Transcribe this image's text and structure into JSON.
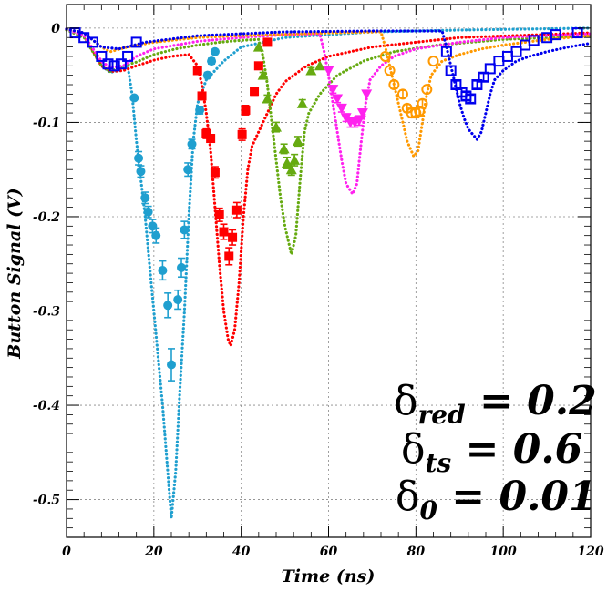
{
  "chart_data": {
    "type": "scatter",
    "xlabel": "Time (ns)",
    "ylabel": "Button Signal (V)",
    "xlim": [
      0,
      120
    ],
    "ylim": [
      -0.54,
      0.025
    ],
    "xticks": [
      0,
      20,
      40,
      60,
      80,
      100,
      120
    ],
    "xtick_labels": [
      "0",
      "20",
      "40",
      "60",
      "80",
      "100",
      "120"
    ],
    "yticks": [
      0,
      -0.1,
      -0.2,
      -0.3,
      -0.4,
      -0.5
    ],
    "ytick_labels": [
      "0",
      "-0.1",
      "-0.2",
      "-0.3",
      "-0.4",
      "-0.5"
    ],
    "grid": true,
    "annotations": [
      {
        "base": "δ",
        "sub": "red",
        "rest": " = 0.2"
      },
      {
        "base": "δ",
        "sub": "ts",
        "rest": " = 0.6"
      },
      {
        "base": "δ",
        "sub": "0",
        "rest": " = 0.01"
      }
    ],
    "series": [
      {
        "color": "#1f9fcf",
        "marker": "circle-filled",
        "curve": [
          [
            0,
            -0.001
          ],
          [
            4,
            -0.008
          ],
          [
            8,
            -0.04
          ],
          [
            10,
            -0.047
          ],
          [
            12,
            -0.045
          ],
          [
            14,
            -0.04
          ],
          [
            15,
            -0.07
          ],
          [
            16,
            -0.12
          ],
          [
            17,
            -0.16
          ],
          [
            18,
            -0.2
          ],
          [
            19,
            -0.25
          ],
          [
            20,
            -0.3
          ],
          [
            21,
            -0.35
          ],
          [
            22,
            -0.4
          ],
          [
            23,
            -0.46
          ],
          [
            24,
            -0.52
          ],
          [
            25,
            -0.47
          ],
          [
            26,
            -0.38
          ],
          [
            27,
            -0.3
          ],
          [
            28,
            -0.2
          ],
          [
            29,
            -0.12
          ],
          [
            30,
            -0.08
          ],
          [
            32,
            -0.055
          ],
          [
            36,
            -0.035
          ],
          [
            40,
            -0.02
          ],
          [
            50,
            -0.01
          ],
          [
            70,
            -0.004
          ],
          [
            90,
            -0.002
          ],
          [
            120,
            0
          ]
        ],
        "points": [
          [
            15.5,
            -0.074,
            0
          ],
          [
            16.5,
            -0.138,
            0.007
          ],
          [
            17,
            -0.152,
            0.006
          ],
          [
            18,
            -0.18,
            0.006
          ],
          [
            18.7,
            -0.195,
            0.006
          ],
          [
            19.7,
            -0.21,
            0.007
          ],
          [
            20.5,
            -0.22,
            0.008
          ],
          [
            22,
            -0.257,
            0.01
          ],
          [
            23.2,
            -0.294,
            0.013
          ],
          [
            24,
            -0.357,
            0.017
          ],
          [
            25.5,
            -0.288,
            0.01
          ],
          [
            26.3,
            -0.254,
            0.01
          ],
          [
            27,
            -0.214,
            0.009
          ],
          [
            27.8,
            -0.15,
            0.007
          ],
          [
            28.7,
            -0.123,
            0.005
          ],
          [
            30.5,
            -0.087,
            0.004
          ],
          [
            32.3,
            -0.05,
            0.003
          ],
          [
            33.2,
            -0.035,
            0.003
          ],
          [
            34,
            -0.025,
            0
          ]
        ]
      },
      {
        "color": "#ff0000",
        "marker": "square-filled",
        "curve": [
          [
            0,
            -0.001
          ],
          [
            4,
            -0.008
          ],
          [
            8,
            -0.04
          ],
          [
            10,
            -0.046
          ],
          [
            13,
            -0.045
          ],
          [
            16,
            -0.04
          ],
          [
            20,
            -0.034
          ],
          [
            24,
            -0.03
          ],
          [
            28,
            -0.028
          ],
          [
            30,
            -0.04
          ],
          [
            31,
            -0.06
          ],
          [
            32,
            -0.09
          ],
          [
            33,
            -0.13
          ],
          [
            34,
            -0.19
          ],
          [
            35,
            -0.25
          ],
          [
            36,
            -0.3
          ],
          [
            37,
            -0.33
          ],
          [
            37.6,
            -0.337
          ],
          [
            38.5,
            -0.32
          ],
          [
            39.5,
            -0.27
          ],
          [
            40.5,
            -0.2
          ],
          [
            41.5,
            -0.15
          ],
          [
            42.5,
            -0.125
          ],
          [
            44,
            -0.11
          ],
          [
            46,
            -0.09
          ],
          [
            48,
            -0.07
          ],
          [
            50,
            -0.057
          ],
          [
            55,
            -0.04
          ],
          [
            60,
            -0.03
          ],
          [
            70,
            -0.02
          ],
          [
            90,
            -0.01
          ],
          [
            120,
            -0.005
          ]
        ],
        "points": [
          [
            30,
            -0.045,
            0
          ],
          [
            31,
            -0.072,
            0.004
          ],
          [
            32,
            -0.112,
            0.005
          ],
          [
            33,
            -0.117,
            0.004
          ],
          [
            34,
            -0.153,
            0.006
          ],
          [
            35,
            -0.198,
            0.007
          ],
          [
            36,
            -0.216,
            0.008
          ],
          [
            37.2,
            -0.242,
            0.009
          ],
          [
            38,
            -0.222,
            0.008
          ],
          [
            39,
            -0.193,
            0.008
          ],
          [
            40.2,
            -0.113,
            0.006
          ],
          [
            41,
            -0.087,
            0.005
          ],
          [
            43,
            -0.067,
            0.004
          ],
          [
            44,
            -0.04,
            0.003
          ],
          [
            46,
            -0.015,
            0
          ]
        ]
      },
      {
        "color": "#66aa11",
        "marker": "triangle-filled",
        "curve": [
          [
            0,
            -0.002
          ],
          [
            4,
            -0.01
          ],
          [
            8,
            -0.04
          ],
          [
            10,
            -0.046
          ],
          [
            13,
            -0.04
          ],
          [
            16,
            -0.036
          ],
          [
            20,
            -0.028
          ],
          [
            25,
            -0.022
          ],
          [
            30,
            -0.018
          ],
          [
            35,
            -0.015
          ],
          [
            40,
            -0.013
          ],
          [
            44,
            -0.012
          ],
          [
            45,
            -0.03
          ],
          [
            46,
            -0.06
          ],
          [
            47,
            -0.1
          ],
          [
            48,
            -0.14
          ],
          [
            49,
            -0.18
          ],
          [
            50,
            -0.21
          ],
          [
            51.5,
            -0.24
          ],
          [
            52.5,
            -0.22
          ],
          [
            53.5,
            -0.16
          ],
          [
            54.5,
            -0.11
          ],
          [
            55.5,
            -0.09
          ],
          [
            58,
            -0.07
          ],
          [
            62,
            -0.05
          ],
          [
            68,
            -0.035
          ],
          [
            75,
            -0.025
          ],
          [
            85,
            -0.018
          ],
          [
            100,
            -0.012
          ],
          [
            120,
            -0.008
          ]
        ],
        "points": [
          [
            44,
            -0.02,
            0
          ],
          [
            45,
            -0.05,
            0.003
          ],
          [
            46,
            -0.075,
            0.004
          ],
          [
            48,
            -0.105,
            0.005
          ],
          [
            49.8,
            -0.128,
            0.005
          ],
          [
            50.5,
            -0.143,
            0.006
          ],
          [
            51.5,
            -0.15,
            0.006
          ],
          [
            52.2,
            -0.14,
            0.006
          ],
          [
            53,
            -0.12,
            0.005
          ],
          [
            54,
            -0.08,
            0.004
          ],
          [
            56,
            -0.045,
            0.003
          ],
          [
            58,
            -0.04,
            0
          ]
        ]
      },
      {
        "color": "#ff22ee",
        "marker": "triangle-down-filled",
        "curve": [
          [
            0,
            -0.001
          ],
          [
            4,
            -0.008
          ],
          [
            8,
            -0.035
          ],
          [
            10,
            -0.042
          ],
          [
            13,
            -0.04
          ],
          [
            16,
            -0.03
          ],
          [
            20,
            -0.022
          ],
          [
            30,
            -0.014
          ],
          [
            40,
            -0.01
          ],
          [
            50,
            -0.007
          ],
          [
            58,
            -0.006
          ],
          [
            59,
            -0.025
          ],
          [
            60,
            -0.05
          ],
          [
            61,
            -0.08
          ],
          [
            62,
            -0.11
          ],
          [
            63,
            -0.14
          ],
          [
            64,
            -0.165
          ],
          [
            65.5,
            -0.176
          ],
          [
            66.5,
            -0.165
          ],
          [
            67.5,
            -0.12
          ],
          [
            68.5,
            -0.08
          ],
          [
            69.5,
            -0.055
          ],
          [
            72,
            -0.04
          ],
          [
            75,
            -0.03
          ],
          [
            80,
            -0.022
          ],
          [
            90,
            -0.015
          ],
          [
            100,
            -0.01
          ],
          [
            120,
            -0.006
          ]
        ],
        "points": [
          [
            60,
            -0.045,
            0
          ],
          [
            61,
            -0.065,
            0.004
          ],
          [
            62,
            -0.075,
            0.004
          ],
          [
            63,
            -0.085,
            0.004
          ],
          [
            64,
            -0.095,
            0.004
          ],
          [
            65,
            -0.1,
            0.005
          ],
          [
            66,
            -0.1,
            0.005
          ],
          [
            67,
            -0.098,
            0.005
          ],
          [
            67.8,
            -0.09,
            0.004
          ],
          [
            68.7,
            -0.07,
            0
          ]
        ]
      },
      {
        "color": "#ff9900",
        "marker": "circle-open",
        "curve": [
          [
            0,
            -0.001
          ],
          [
            4,
            -0.005
          ],
          [
            8,
            -0.02
          ],
          [
            10,
            -0.025
          ],
          [
            14,
            -0.02
          ],
          [
            20,
            -0.015
          ],
          [
            30,
            -0.01
          ],
          [
            40,
            -0.008
          ],
          [
            60,
            -0.005
          ],
          [
            72,
            -0.004
          ],
          [
            73,
            -0.02
          ],
          [
            74,
            -0.04
          ],
          [
            75,
            -0.06
          ],
          [
            76,
            -0.08
          ],
          [
            77,
            -0.1
          ],
          [
            78,
            -0.12
          ],
          [
            79.5,
            -0.136
          ],
          [
            80.5,
            -0.13
          ],
          [
            81.5,
            -0.1
          ],
          [
            82.5,
            -0.07
          ],
          [
            83.5,
            -0.05
          ],
          [
            86,
            -0.035
          ],
          [
            90,
            -0.028
          ],
          [
            95,
            -0.022
          ],
          [
            100,
            -0.018
          ],
          [
            110,
            -0.012
          ],
          [
            120,
            -0.008
          ]
        ],
        "points": [
          [
            73,
            -0.03,
            0
          ],
          [
            74,
            -0.045,
            0
          ],
          [
            75,
            -0.06,
            0.004
          ],
          [
            77,
            -0.07,
            0.004
          ],
          [
            78,
            -0.085,
            0.004
          ],
          [
            79,
            -0.09,
            0.005
          ],
          [
            80,
            -0.09,
            0.005
          ],
          [
            80.8,
            -0.088,
            0.005
          ],
          [
            81.5,
            -0.08,
            0.004
          ],
          [
            82.5,
            -0.065,
            0
          ],
          [
            84,
            -0.035,
            0
          ]
        ]
      },
      {
        "color": "#0000ee",
        "marker": "square-open",
        "curve": [
          [
            0,
            -0.001
          ],
          [
            4,
            -0.005
          ],
          [
            8,
            -0.02
          ],
          [
            12,
            -0.022
          ],
          [
            18,
            -0.015
          ],
          [
            30,
            -0.008
          ],
          [
            50,
            -0.004
          ],
          [
            70,
            -0.003
          ],
          [
            86,
            -0.003
          ],
          [
            87,
            -0.02
          ],
          [
            88,
            -0.04
          ],
          [
            89,
            -0.06
          ],
          [
            90,
            -0.08
          ],
          [
            91,
            -0.095
          ],
          [
            92,
            -0.107
          ],
          [
            94,
            -0.118
          ],
          [
            95,
            -0.11
          ],
          [
            96,
            -0.09
          ],
          [
            97,
            -0.07
          ],
          [
            98,
            -0.055
          ],
          [
            100,
            -0.045
          ],
          [
            103,
            -0.035
          ],
          [
            106,
            -0.03
          ],
          [
            110,
            -0.025
          ],
          [
            115,
            -0.02
          ],
          [
            120,
            -0.016
          ]
        ],
        "points": [
          [
            2,
            -0.005,
            0
          ],
          [
            4,
            -0.01,
            0
          ],
          [
            6,
            -0.015,
            0
          ],
          [
            8,
            -0.03,
            0
          ],
          [
            9.5,
            -0.038,
            0
          ],
          [
            11,
            -0.04,
            0
          ],
          [
            12.5,
            -0.038,
            0
          ],
          [
            14,
            -0.03,
            0
          ],
          [
            16,
            -0.015,
            0
          ],
          [
            87,
            -0.025,
            0
          ],
          [
            88,
            -0.045,
            0
          ],
          [
            89.2,
            -0.06,
            0.004
          ],
          [
            90.5,
            -0.068,
            0.004
          ],
          [
            91.5,
            -0.072,
            0.004
          ],
          [
            92.5,
            -0.075,
            0.004
          ],
          [
            94,
            -0.06,
            0.004
          ],
          [
            95.5,
            -0.052,
            0.004
          ],
          [
            97,
            -0.043,
            0
          ],
          [
            99,
            -0.035,
            0
          ],
          [
            101,
            -0.03,
            0
          ],
          [
            103,
            -0.025,
            0
          ],
          [
            105,
            -0.018,
            0
          ],
          [
            107,
            -0.013,
            0
          ],
          [
            110,
            -0.01,
            0
          ],
          [
            112,
            -0.007,
            0
          ],
          [
            117,
            -0.005,
            0
          ]
        ]
      }
    ]
  }
}
